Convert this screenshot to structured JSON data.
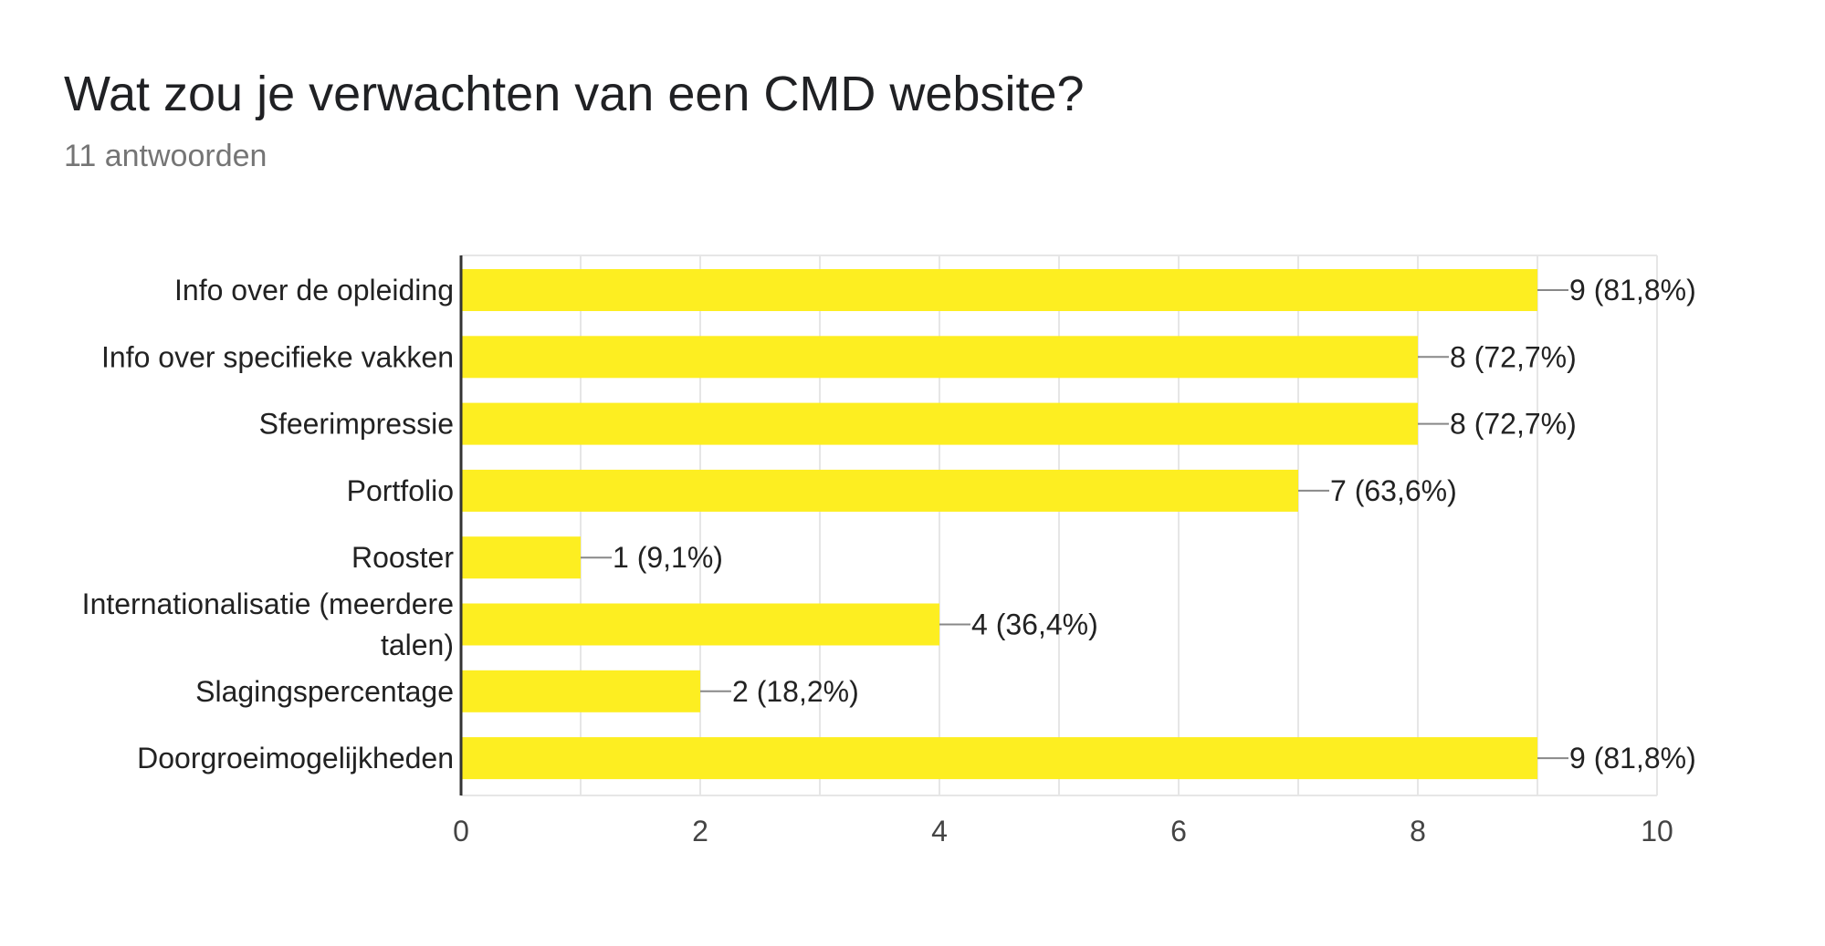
{
  "header": {
    "title": "Wat zou je verwachten van een CMD website?",
    "subtitle": "11 antwoorden"
  },
  "colors": {
    "bar": "#fdee21",
    "grid": "#e6e6e6",
    "axis": "#333333",
    "leader": "#888888"
  },
  "chart_data": {
    "type": "bar",
    "orientation": "horizontal",
    "title": "Wat zou je verwachten van een CMD website?",
    "subtitle": "11 antwoorden",
    "categories": [
      "Info over de opleiding",
      "Info over specifieke vakken",
      "Sfeerimpressie",
      "Portfolio",
      "Rooster",
      "Internationalisatie (meerdere talen)",
      "Slagingspercentage",
      "Doorgroeimogelijkheden"
    ],
    "category_lines": [
      [
        "Info over de opleiding"
      ],
      [
        "Info over specifieke vakken"
      ],
      [
        "Sfeerimpressie"
      ],
      [
        "Portfolio"
      ],
      [
        "Rooster"
      ],
      [
        "Internationalisatie (meerdere",
        "talen)"
      ],
      [
        "Slagingspercentage"
      ],
      [
        "Doorgroeimogelijkheden"
      ]
    ],
    "values": [
      9,
      8,
      8,
      7,
      1,
      4,
      2,
      9
    ],
    "data_labels": [
      "9 (81,8%)",
      "8 (72,7%)",
      "8 (72,7%)",
      "7 (63,6%)",
      "1 (9,1%)",
      "4 (36,4%)",
      "2 (18,2%)",
      "9 (81,8%)"
    ],
    "xlim": [
      0,
      10
    ],
    "xticks": [
      0,
      2,
      4,
      6,
      8,
      10
    ],
    "grid": true,
    "legend": "none",
    "xlabel": "",
    "ylabel": ""
  }
}
